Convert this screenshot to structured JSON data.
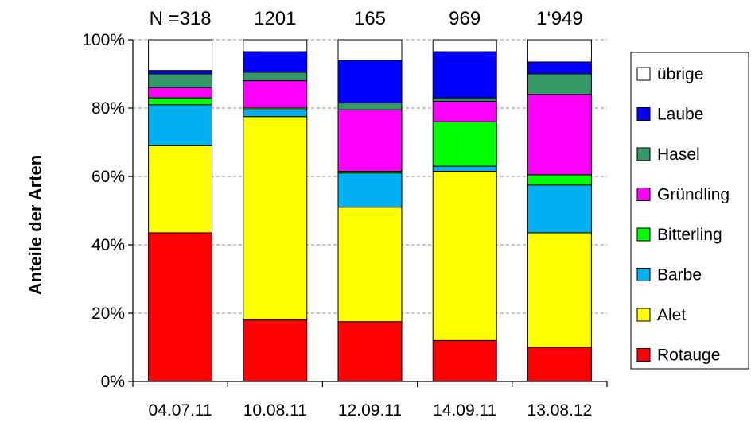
{
  "chart_data": {
    "type": "bar",
    "stacked": true,
    "title": "",
    "xlabel": "",
    "ylabel": "Anteile der Arten",
    "ylim": [
      0,
      100
    ],
    "yticks": [
      "0%",
      "20%",
      "40%",
      "60%",
      "80%",
      "100%"
    ],
    "grid": true,
    "legend_position": "right",
    "categories": [
      "04.07.11",
      "10.08.11",
      "12.09.11",
      "14.09.11",
      "13.08.12"
    ],
    "n_labels": [
      "N =318",
      "1201",
      "165",
      "969",
      "1‘949"
    ],
    "series": [
      {
        "name": "Rotauge",
        "color": "#ff0000",
        "values": [
          43.5,
          18.0,
          17.5,
          12.0,
          10.0
        ]
      },
      {
        "name": "Alet",
        "color": "#ffff00",
        "values": [
          25.5,
          59.5,
          33.5,
          49.5,
          33.5
        ]
      },
      {
        "name": "Barbe",
        "color": "#00b0f0",
        "values": [
          12.0,
          2.0,
          10.0,
          1.5,
          14.0
        ]
      },
      {
        "name": "Bitterling",
        "color": "#00ff00",
        "values": [
          2.0,
          0.5,
          0.5,
          13.0,
          3.0
        ]
      },
      {
        "name": "Gründling",
        "color": "#ff00ff",
        "values": [
          3.0,
          8.0,
          18.0,
          6.0,
          23.5
        ]
      },
      {
        "name": "Hasel",
        "color": "#339966",
        "values": [
          4.0,
          2.5,
          2.0,
          1.0,
          6.0
        ]
      },
      {
        "name": "Laube",
        "color": "#0000ff",
        "values": [
          1.0,
          6.0,
          12.5,
          13.5,
          3.5
        ]
      },
      {
        "name": "übrige",
        "color": "#ffffff",
        "values": [
          9.0,
          3.5,
          6.0,
          3.5,
          6.5
        ]
      }
    ]
  }
}
